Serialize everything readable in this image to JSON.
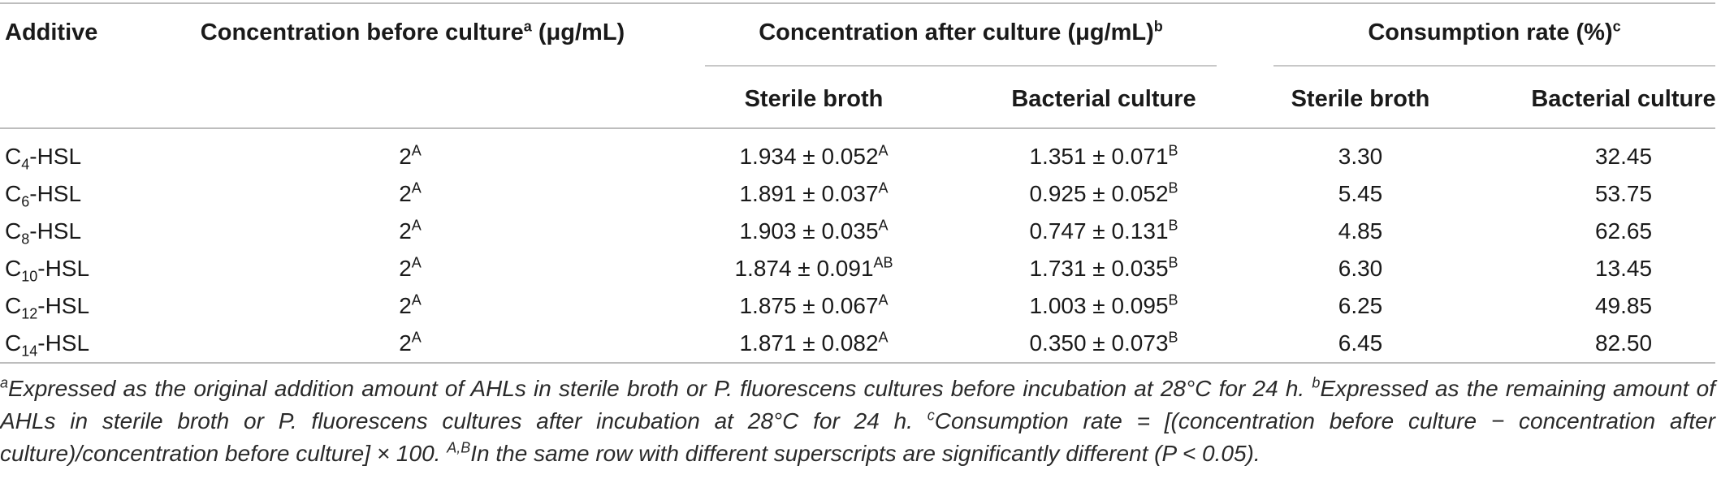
{
  "table": {
    "headers": {
      "additive": "Additive",
      "conc_before": "Concentration before culture",
      "conc_before_sup": "a",
      "conc_before_unit": " (μg/mL)",
      "conc_after": "Concentration after culture (μg/mL)",
      "conc_after_sup": "b",
      "consumption": "Consumption rate (%)",
      "consumption_sup": "c",
      "sterile_broth": "Sterile broth",
      "bacterial_culture": "Bacterial culture",
      "sterile_broth_2": "Sterile broth",
      "bacterial_culture_2": "Bacterial culture"
    },
    "rows": [
      {
        "add_pre": "C",
        "add_sub": "4",
        "add_post": "-HSL",
        "before": "2",
        "before_sup": "A",
        "after_sterile": "1.934 ± 0.052",
        "after_sterile_sup": "A",
        "after_bact": "1.351 ± 0.071",
        "after_bact_sup": "B",
        "rate_sterile": "3.30",
        "rate_bact": "32.45"
      },
      {
        "add_pre": "C",
        "add_sub": "6",
        "add_post": "-HSL",
        "before": "2",
        "before_sup": "A",
        "after_sterile": "1.891 ± 0.037",
        "after_sterile_sup": "A",
        "after_bact": "0.925 ± 0.052",
        "after_bact_sup": "B",
        "rate_sterile": "5.45",
        "rate_bact": "53.75"
      },
      {
        "add_pre": "C",
        "add_sub": "8",
        "add_post": "-HSL",
        "before": "2",
        "before_sup": "A",
        "after_sterile": "1.903 ± 0.035",
        "after_sterile_sup": "A",
        "after_bact": "0.747 ± 0.131",
        "after_bact_sup": "B",
        "rate_sterile": "4.85",
        "rate_bact": "62.65"
      },
      {
        "add_pre": "C",
        "add_sub": "10",
        "add_post": "-HSL",
        "before": "2",
        "before_sup": "A",
        "after_sterile": "1.874 ± 0.091",
        "after_sterile_sup": "AB",
        "after_bact": "1.731 ± 0.035",
        "after_bact_sup": "B",
        "rate_sterile": "6.30",
        "rate_bact": "13.45"
      },
      {
        "add_pre": "C",
        "add_sub": "12",
        "add_post": "-HSL",
        "before": "2",
        "before_sup": "A",
        "after_sterile": "1.875 ± 0.067",
        "after_sterile_sup": "A",
        "after_bact": "1.003 ± 0.095",
        "after_bact_sup": "B",
        "rate_sterile": "6.25",
        "rate_bact": "49.85"
      },
      {
        "add_pre": "C",
        "add_sub": "14",
        "add_post": "-HSL",
        "before": "2",
        "before_sup": "A",
        "after_sterile": "1.871 ± 0.082",
        "after_sterile_sup": "A",
        "after_bact": "0.350 ± 0.073",
        "after_bact_sup": "B",
        "rate_sterile": "6.45",
        "rate_bact": "82.50"
      }
    ]
  },
  "footnotes": {
    "a_mark": "a",
    "a_text": "Expressed as the original addition amount of AHLs in sterile broth or P. fluorescens cultures before incubation at 28°C for 24 h. ",
    "b_mark": "b",
    "b_text": "Expressed as the remaining amount of AHLs in sterile broth or P. fluorescens cultures after incubation at 28°C for 24 h. ",
    "c_mark": "c",
    "c_text": "Consumption rate = [(concentration before culture − concentration after culture)/concentration before culture] × 100. ",
    "ab_mark": "A,B",
    "ab_text": "In the same row with different superscripts are significantly different (P < 0.05)."
  },
  "colors": {
    "rule": "#bdbdbd",
    "text": "#1a1a1a"
  }
}
